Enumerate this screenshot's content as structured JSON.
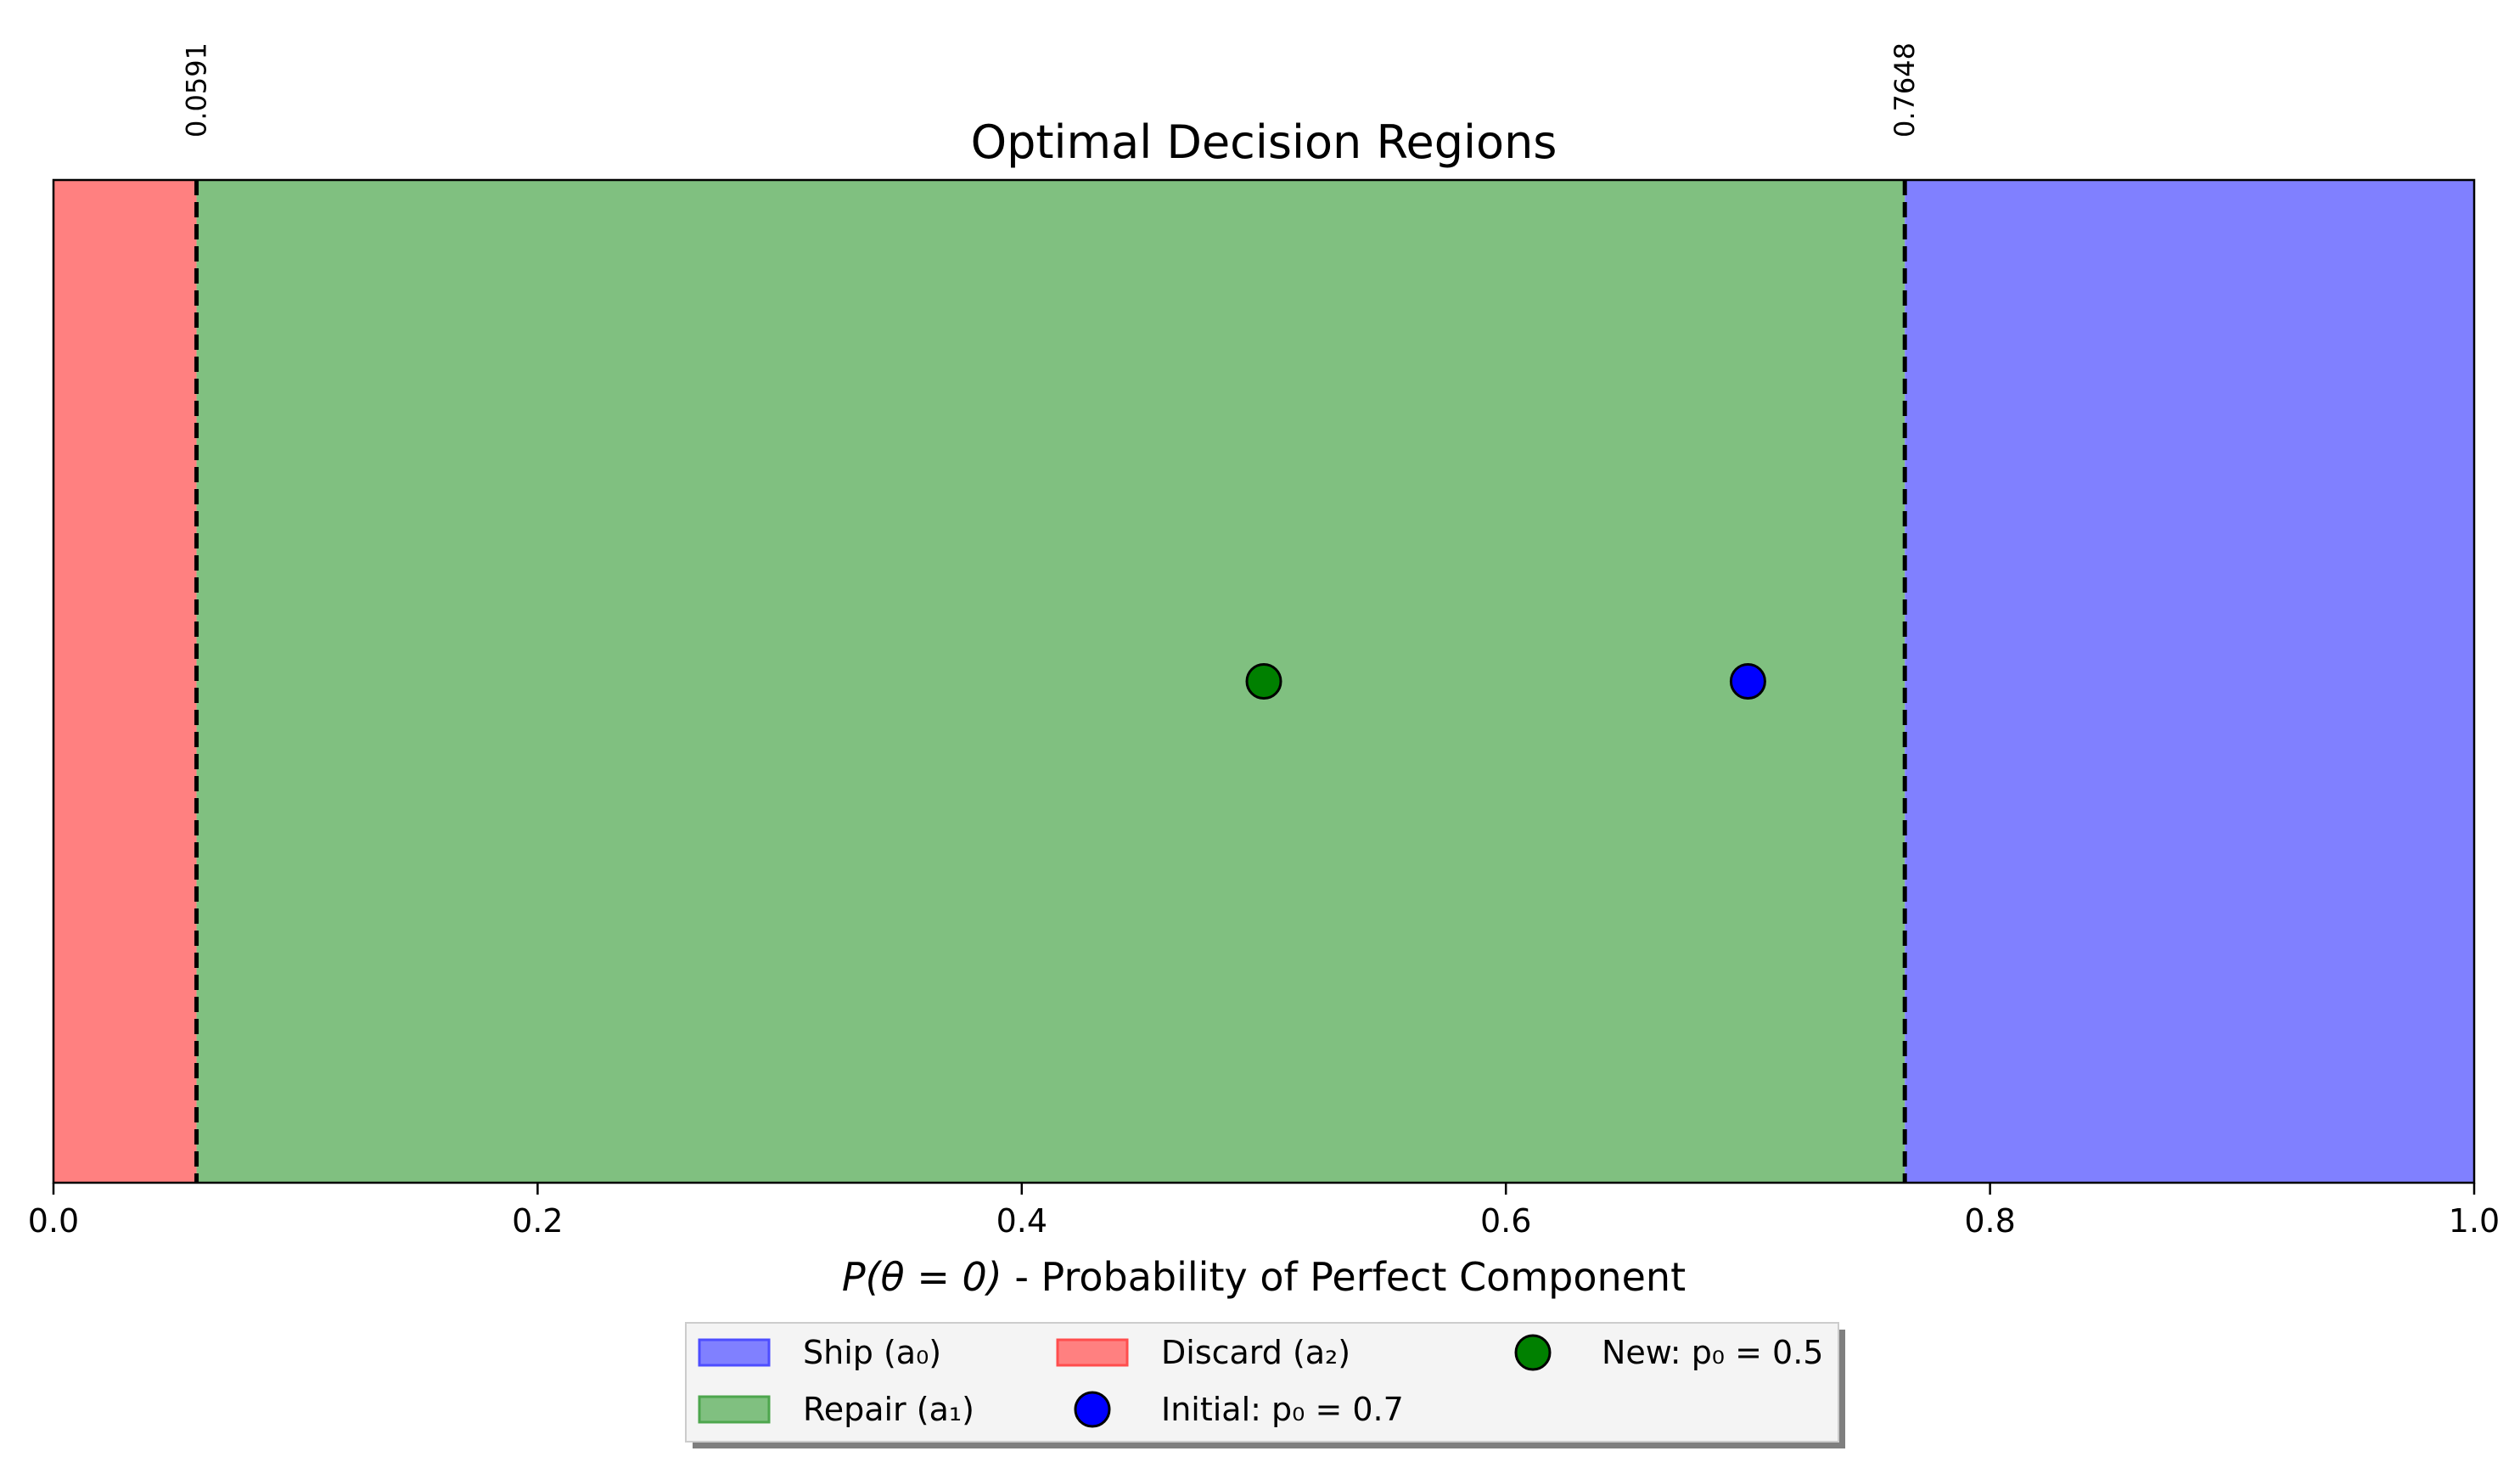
{
  "chart_data": {
    "type": "area",
    "title": "Optimal Decision Regions",
    "xlabel_italic": "P(θ = 0)",
    "xlabel_rest": " - Probability of Perfect Component",
    "xlim": [
      0.0,
      1.0
    ],
    "xticks": [
      0.0,
      0.2,
      0.4,
      0.6,
      0.8,
      1.0
    ],
    "xtick_labels": [
      "0.0",
      "0.2",
      "0.4",
      "0.6",
      "0.8",
      "1.0"
    ],
    "regions": [
      {
        "name": "Discard (a₂)",
        "x_start": 0.0,
        "x_end": 0.0591,
        "color": "#ff8080",
        "edge": "#ff4d4d"
      },
      {
        "name": "Repair (a₁)",
        "x_start": 0.0591,
        "x_end": 0.7648,
        "color": "#80c080",
        "edge": "#4da64d"
      },
      {
        "name": "Ship (a₀)",
        "x_start": 0.7648,
        "x_end": 1.0,
        "color": "#8080ff",
        "edge": "#4d4dff"
      }
    ],
    "thresholds": [
      {
        "value": 0.0591,
        "label": "0.0591"
      },
      {
        "value": 0.7648,
        "label": "0.7648"
      }
    ],
    "points": [
      {
        "name": "New: p₀ = 0.5",
        "x": 0.5,
        "color": "#008000"
      },
      {
        "name": "Initial: p₀ = 0.7",
        "x": 0.7,
        "color": "#0000ff"
      }
    ],
    "legend": {
      "placement": "bottom-center",
      "items": [
        {
          "label": "Ship (a₀)",
          "kind": "patch",
          "color": "#8080ff",
          "edge": "#4d4dff"
        },
        {
          "label": "Repair (a₁)",
          "kind": "patch",
          "color": "#80c080",
          "edge": "#4da64d"
        },
        {
          "label": "Discard (a₂)",
          "kind": "patch",
          "color": "#ff8080",
          "edge": "#ff4d4d"
        },
        {
          "label": "Initial: p₀ = 0.7",
          "kind": "marker",
          "color": "#0000ff"
        },
        {
          "label": "New: p₀ = 0.5",
          "kind": "marker",
          "color": "#008000"
        }
      ]
    }
  }
}
